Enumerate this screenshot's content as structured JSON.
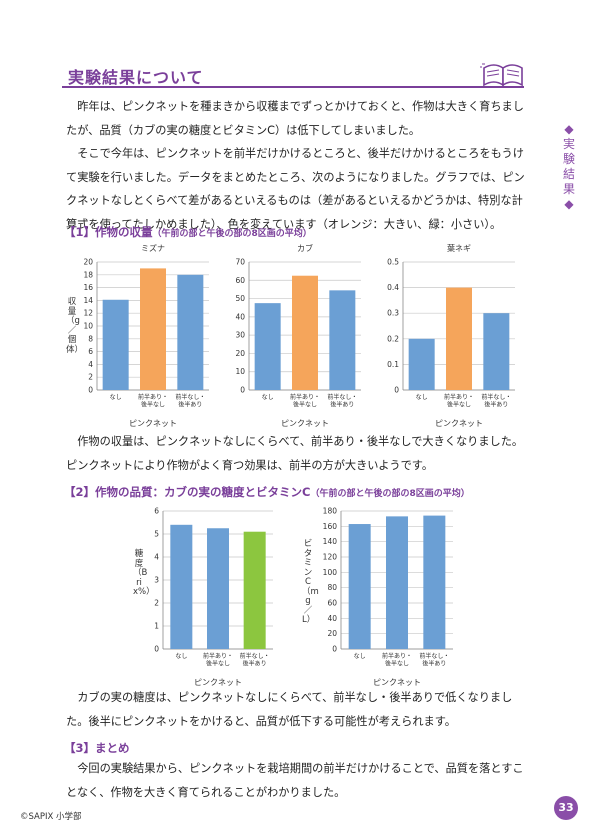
{
  "page": {
    "title": "実験結果について",
    "side_tab": [
      "◆",
      "実",
      "験",
      "結",
      "果",
      "◆"
    ],
    "page_number": "33",
    "footer": "©SAPIX 小学部"
  },
  "paragraphs": {
    "p1": "　昨年は、ピンクネットを種まきから収穫までずっとかけておくと、作物は大きく育ちましたが、品質（カブの実の糖度とビタミンC）は低下してしまいました。",
    "p2": "　そこで今年は、ピンクネットを前半だけかけるところと、後半だけかけるところをもうけて実験を行いました。データをまとめたところ、次のようになりました。グラフでは、ピンクネットなしとくらべて差があるといえるものは（差があるといえるかどうかは、特別な計算式を使ってたしかめました）、色を変えています（オレンジ：大きい、緑：小さい）。",
    "p3": "　作物の収量は、ピンクネットなしにくらべて、前半あり・後半なしで大きくなりました。ピンクネットにより作物がよく育つ効果は、前半の方が大きいようです。",
    "p4": "　カブの実の糖度は、ピンクネットなしにくらべて、前半なし・後半ありで低くなりました。後半にピンクネットをかけると、品質が低下する可能性が考えられます。",
    "p5": "　今回の実験結果から、ピンクネットを栽培期間の前半だけかけることで、品質を落とすことなく、作物を大きく育てられることがわかりました。"
  },
  "sections": {
    "s1_label": "【1】作物の収量",
    "s1_note": "（午前の部と午後の部の8区画の平均）",
    "s2_label": "【2】作物の品質：カブの実の糖度とビタミンC",
    "s2_note": "（午前の部と午後の部の8区画の平均）",
    "s3_label": "【3】まとめ"
  },
  "colors": {
    "blue": "#6b9fd4",
    "orange": "#f5a55b",
    "green": "#8cc63f",
    "purple": "#7a3f9a"
  },
  "chart_data": [
    {
      "type": "bar",
      "title": "ミズナ",
      "xlabel": "ピンクネット",
      "ylabel": "収量（g／個体）",
      "categories": [
        "なし",
        "前半あり・後半なし",
        "前半なし・後半あり"
      ],
      "values": [
        14.1,
        19.0,
        18.0
      ],
      "colors": [
        "blue",
        "orange",
        "blue"
      ],
      "ylim": [
        0,
        20
      ],
      "yticks": [
        "0",
        "2",
        "4",
        "6",
        "8",
        "10",
        "12",
        "14",
        "16",
        "18",
        "20"
      ],
      "grid": true
    },
    {
      "type": "bar",
      "title": "カブ",
      "xlabel": "ピンクネット",
      "ylabel": "",
      "categories": [
        "なし",
        "前半あり・後半なし",
        "前半なし・後半あり"
      ],
      "values": [
        47.5,
        62.5,
        54.5
      ],
      "colors": [
        "blue",
        "orange",
        "blue"
      ],
      "ylim": [
        0,
        70
      ],
      "yticks": [
        "0",
        "10",
        "20",
        "30",
        "40",
        "50",
        "60",
        "70"
      ],
      "grid": true
    },
    {
      "type": "bar",
      "title": "葉ネギ",
      "xlabel": "ピンクネット",
      "ylabel": "",
      "categories": [
        "なし",
        "前半あり・後半なし",
        "前半なし・後半あり"
      ],
      "values": [
        0.2,
        0.4,
        0.3
      ],
      "colors": [
        "blue",
        "orange",
        "blue"
      ],
      "ylim": [
        0,
        0.5
      ],
      "yticks": [
        "0",
        "0.1",
        "0.2",
        "0.3",
        "0.4",
        "0.5"
      ],
      "grid": true
    },
    {
      "type": "bar",
      "title": "",
      "xlabel": "ピンクネット",
      "ylabel": "糖度（Brix%）",
      "categories": [
        "なし",
        "前半あり・後半なし",
        "前半なし・後半あり"
      ],
      "values": [
        5.4,
        5.25,
        5.1
      ],
      "colors": [
        "blue",
        "blue",
        "green"
      ],
      "ylim": [
        0,
        6
      ],
      "yticks": [
        "0",
        "1",
        "2",
        "3",
        "4",
        "5",
        "6"
      ],
      "grid": true
    },
    {
      "type": "bar",
      "title": "",
      "xlabel": "ピンクネット",
      "ylabel": "ビタミンC（mg／L）",
      "categories": [
        "なし",
        "前半あり・後半なし",
        "前半なし・後半あり"
      ],
      "values": [
        163,
        173,
        174
      ],
      "colors": [
        "blue",
        "blue",
        "blue"
      ],
      "ylim": [
        0,
        180
      ],
      "yticks": [
        "0",
        "20",
        "40",
        "60",
        "80",
        "100",
        "120",
        "140",
        "160",
        "180"
      ],
      "grid": true
    }
  ]
}
